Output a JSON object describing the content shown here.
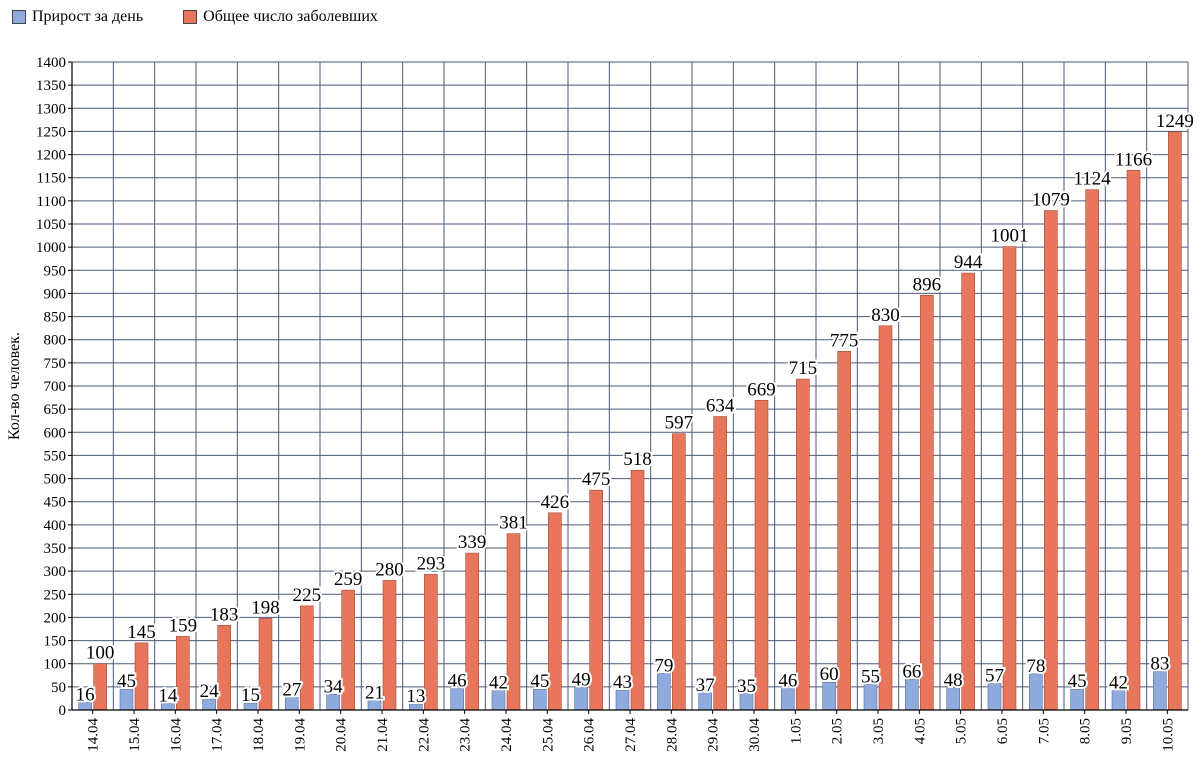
{
  "legend": {
    "daily": {
      "label": "Прирост за день",
      "color": "#8faadc"
    },
    "total": {
      "label": "Общее число заболевших",
      "color": "#e8765c"
    }
  },
  "chart_data": {
    "type": "bar",
    "title": "",
    "xlabel": "",
    "ylabel": "Кол-во человек.",
    "ylim": [
      0,
      1400
    ],
    "ytick_step": 50,
    "grid": true,
    "legend_position": "top-left",
    "categories": [
      "14.04",
      "15.04",
      "16.04",
      "17.04",
      "18.04",
      "19.04",
      "20.04",
      "21.04",
      "22.04",
      "23.04",
      "24.04",
      "25.04",
      "26.04",
      "27.04",
      "28.04",
      "29.04",
      "30.04",
      "1.05",
      "2.05",
      "3.05",
      "4.05",
      "5.05",
      "6.05",
      "7.05",
      "8.05",
      "9.05",
      "10.05"
    ],
    "series": [
      {
        "name": "Прирост за день",
        "color": "#8faadc",
        "values": [
          16,
          45,
          14,
          24,
          15,
          27,
          34,
          21,
          13,
          46,
          42,
          45,
          49,
          43,
          79,
          37,
          35,
          46,
          60,
          55,
          66,
          48,
          57,
          78,
          45,
          42,
          83
        ]
      },
      {
        "name": "Общее число заболевших",
        "color": "#e8765c",
        "values": [
          100,
          145,
          159,
          183,
          198,
          225,
          259,
          280,
          293,
          339,
          381,
          426,
          475,
          518,
          597,
          634,
          669,
          715,
          775,
          830,
          896,
          944,
          1001,
          1079,
          1124,
          1166,
          1249
        ]
      }
    ]
  }
}
